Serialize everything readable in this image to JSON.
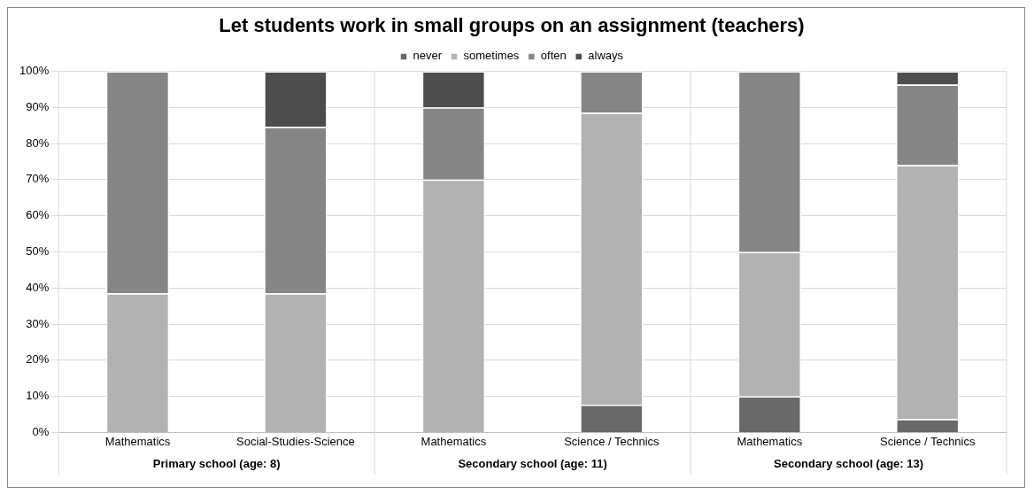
{
  "chart_data": {
    "type": "bar",
    "title": "Let students work in small groups on an assignment (teachers)",
    "categories": [
      "Mathematics",
      "Social-Studies-Science",
      "Mathematics",
      "Science / Technics",
      "Mathematics",
      "Science / Technics"
    ],
    "stacked": true,
    "legend": "top",
    "grid": "y",
    "ylim": [
      0,
      100
    ],
    "yticks": [
      {
        "value": 0,
        "label": "0%"
      },
      {
        "value": 10,
        "label": "10%"
      },
      {
        "value": 20,
        "label": "20%"
      },
      {
        "value": 30,
        "label": "30%"
      },
      {
        "value": 40,
        "label": "40%"
      },
      {
        "value": 50,
        "label": "50%"
      },
      {
        "value": 60,
        "label": "60%"
      },
      {
        "value": 70,
        "label": "70%"
      },
      {
        "value": 80,
        "label": "80%"
      },
      {
        "value": 90,
        "label": "90%"
      },
      {
        "value": 100,
        "label": "100%"
      }
    ],
    "series": [
      {
        "name": "never",
        "color": "#696969",
        "values": [
          0,
          0,
          0,
          7.7,
          10,
          3.7
        ]
      },
      {
        "name": "sometimes",
        "color": "#b2b2b2",
        "values": [
          38.5,
          38.5,
          70,
          80.8,
          40,
          70.3
        ]
      },
      {
        "name": "often",
        "color": "#858585",
        "values": [
          61.5,
          46.1,
          20,
          11.5,
          50,
          22.3
        ]
      },
      {
        "name": "always",
        "color": "#4d4d4d",
        "values": [
          0,
          15.4,
          10,
          0,
          0,
          3.7
        ]
      }
    ],
    "annotations": [
      "Primary school (age: 8)",
      "Secondary school (age: 11)",
      "Secondary school (age: 13)"
    ]
  }
}
